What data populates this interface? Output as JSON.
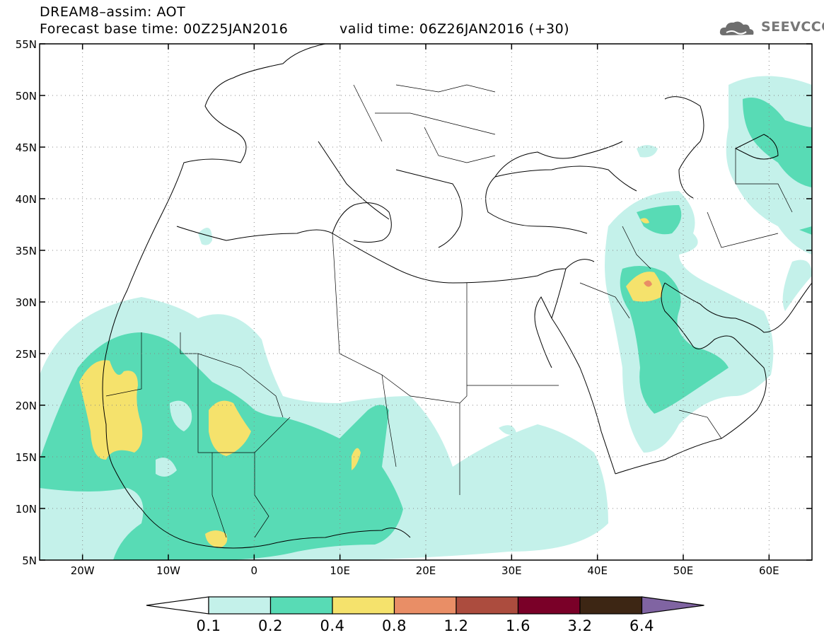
{
  "header": {
    "title": "DREAM8–assim: AOT",
    "base_time": "Forecast base time: 00Z25JAN2016",
    "valid_time": "valid time: 06Z26JAN2016 (+30)"
  },
  "logo": {
    "text": "SEEVCCC",
    "icon": "cloud-icon"
  },
  "map": {
    "lon_range": [
      -25,
      65
    ],
    "lat_range": [
      5,
      55
    ],
    "lat_ticks": [
      {
        "v": 55,
        "label": "55N"
      },
      {
        "v": 50,
        "label": "50N"
      },
      {
        "v": 45,
        "label": "45N"
      },
      {
        "v": 40,
        "label": "40N"
      },
      {
        "v": 35,
        "label": "35N"
      },
      {
        "v": 30,
        "label": "30N"
      },
      {
        "v": 25,
        "label": "25N"
      },
      {
        "v": 20,
        "label": "20N"
      },
      {
        "v": 15,
        "label": "15N"
      },
      {
        "v": 10,
        "label": "10N"
      },
      {
        "v": 5,
        "label": "5N"
      }
    ],
    "lon_ticks": [
      {
        "v": -20,
        "label": "20W"
      },
      {
        "v": -10,
        "label": "10W"
      },
      {
        "v": 0,
        "label": "0"
      },
      {
        "v": 10,
        "label": "10E"
      },
      {
        "v": 20,
        "label": "20E"
      },
      {
        "v": 30,
        "label": "30E"
      },
      {
        "v": 40,
        "label": "40E"
      },
      {
        "v": 50,
        "label": "50E"
      },
      {
        "v": 60,
        "label": "60E"
      }
    ],
    "grid": true
  },
  "colorbar": {
    "labels": [
      "0.1",
      "0.2",
      "0.4",
      "0.8",
      "1.2",
      "1.6",
      "3.2",
      "6.4"
    ],
    "colors": [
      "#c4f1ea",
      "#58dbb5",
      "#f5e26c",
      "#e98e66",
      "#ac4c3e",
      "#7a0028",
      "#3d2614",
      "#8064a2"
    ]
  }
}
